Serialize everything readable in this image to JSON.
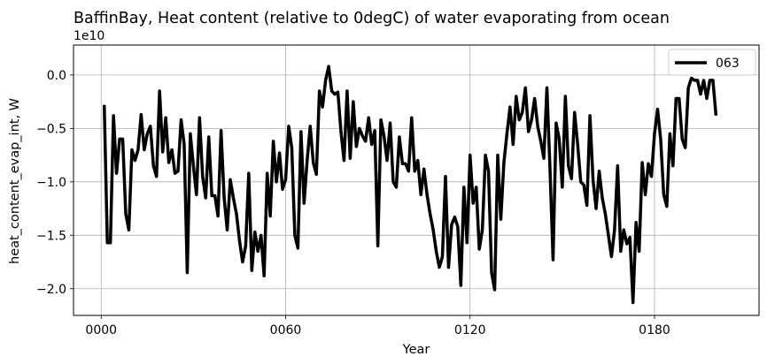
{
  "chart_data": {
    "type": "line",
    "title": "BaffinBay, Heat content (relative to 0degC) of water evaporating from ocean",
    "xlabel": "Year",
    "ylabel": "heat_content_evap_int, W",
    "offset_label": "1e10",
    "xlim": [
      -9,
      214
    ],
    "ylim": [
      -2.25,
      0.28
    ],
    "x_ticks": [
      0,
      60,
      120,
      180
    ],
    "x_tick_labels": [
      "0000",
      "0060",
      "0120",
      "0180"
    ],
    "y_ticks": [
      -2.0,
      -1.5,
      -1.0,
      -0.5,
      0.0
    ],
    "y_tick_labels": [
      "−2.0",
      "−1.5",
      "−1.0",
      "−0.5",
      "0.0"
    ],
    "grid": true,
    "legend_position": "top-right",
    "series": [
      {
        "name": "063",
        "color": "#000000",
        "x": [
          1,
          2,
          3,
          4,
          5,
          6,
          7,
          8,
          9,
          10,
          11,
          12,
          13,
          14,
          15,
          16,
          17,
          18,
          19,
          20,
          21,
          22,
          23,
          24,
          25,
          26,
          27,
          28,
          29,
          30,
          31,
          32,
          33,
          34,
          35,
          36,
          37,
          38,
          39,
          40,
          41,
          42,
          43,
          44,
          45,
          46,
          47,
          48,
          49,
          50,
          51,
          52,
          53,
          54,
          55,
          56,
          57,
          58,
          59,
          60,
          61,
          62,
          63,
          64,
          65,
          66,
          67,
          68,
          69,
          70,
          71,
          72,
          73,
          74,
          75,
          76,
          77,
          78,
          79,
          80,
          81,
          82,
          83,
          84,
          85,
          86,
          87,
          88,
          89,
          90,
          91,
          92,
          93,
          94,
          95,
          96,
          97,
          98,
          99,
          100,
          101,
          102,
          103,
          104,
          105,
          106,
          107,
          108,
          109,
          110,
          111,
          112,
          113,
          114,
          115,
          116,
          117,
          118,
          119,
          120,
          121,
          122,
          123,
          124,
          125,
          126,
          127,
          128,
          129,
          130,
          131,
          132,
          133,
          134,
          135,
          136,
          137,
          138,
          139,
          140,
          141,
          142,
          143,
          144,
          145,
          146,
          147,
          148,
          149,
          150,
          151,
          152,
          153,
          154,
          155,
          156,
          157,
          158,
          159,
          160,
          161,
          162,
          163,
          164,
          165,
          166,
          167,
          168,
          169,
          170,
          171,
          172,
          173,
          174,
          175,
          176,
          177,
          178,
          179,
          180,
          181,
          182,
          183,
          184,
          185,
          186,
          187,
          188,
          189,
          190,
          191,
          192,
          193,
          194,
          195,
          196,
          197,
          198,
          199,
          200
        ],
        "y": [
          -0.28,
          -1.57,
          -1.57,
          -0.38,
          -0.92,
          -0.6,
          -0.6,
          -1.3,
          -1.45,
          -0.7,
          -0.8,
          -0.7,
          -0.37,
          -0.7,
          -0.55,
          -0.48,
          -0.85,
          -0.95,
          -0.15,
          -0.72,
          -0.4,
          -0.82,
          -0.7,
          -0.92,
          -0.9,
          -0.42,
          -0.65,
          -1.85,
          -0.55,
          -0.85,
          -1.12,
          -0.4,
          -0.95,
          -1.15,
          -0.58,
          -1.13,
          -1.13,
          -1.32,
          -0.52,
          -1.15,
          -1.45,
          -0.98,
          -1.15,
          -1.3,
          -1.55,
          -1.75,
          -1.6,
          -0.92,
          -1.83,
          -1.47,
          -1.65,
          -1.5,
          -1.88,
          -0.92,
          -1.32,
          -0.62,
          -1.0,
          -0.73,
          -1.07,
          -0.98,
          -0.48,
          -0.68,
          -1.5,
          -1.62,
          -0.53,
          -1.2,
          -0.8,
          -0.48,
          -0.82,
          -0.93,
          -0.15,
          -0.3,
          -0.05,
          0.08,
          -0.15,
          -0.18,
          -0.16,
          -0.53,
          -0.8,
          -0.15,
          -0.78,
          -0.25,
          -0.67,
          -0.5,
          -0.57,
          -0.62,
          -0.4,
          -0.65,
          -0.52,
          -1.6,
          -0.42,
          -0.57,
          -0.8,
          -0.45,
          -1.0,
          -1.05,
          -0.58,
          -0.83,
          -0.83,
          -0.9,
          -0.4,
          -0.9,
          -0.8,
          -1.12,
          -0.88,
          -1.12,
          -1.3,
          -1.45,
          -1.65,
          -1.8,
          -1.7,
          -0.95,
          -1.8,
          -1.4,
          -1.33,
          -1.42,
          -1.97,
          -1.05,
          -1.57,
          -0.75,
          -1.2,
          -1.05,
          -1.63,
          -1.45,
          -0.75,
          -0.9,
          -1.85,
          -2.01,
          -0.75,
          -1.35,
          -0.82,
          -0.55,
          -0.3,
          -0.65,
          -0.2,
          -0.42,
          -0.35,
          -0.12,
          -0.53,
          -0.42,
          -0.22,
          -0.48,
          -0.62,
          -0.78,
          -0.12,
          -0.88,
          -1.73,
          -0.45,
          -0.6,
          -1.05,
          -0.2,
          -0.85,
          -0.97,
          -0.35,
          -0.65,
          -1.0,
          -1.03,
          -1.22,
          -0.38,
          -0.98,
          -1.25,
          -0.9,
          -1.15,
          -1.3,
          -1.5,
          -1.7,
          -1.45,
          -0.85,
          -1.65,
          -1.45,
          -1.58,
          -1.52,
          -2.13,
          -1.38,
          -1.65,
          -0.82,
          -1.12,
          -0.83,
          -0.95,
          -0.55,
          -0.32,
          -0.6,
          -1.12,
          -1.23,
          -0.55,
          -0.85,
          -0.22,
          -0.22,
          -0.6,
          -0.68,
          -0.12,
          -0.03,
          -0.05,
          -0.05,
          -0.18,
          -0.05,
          -0.22,
          -0.05,
          -0.05,
          -0.38
        ]
      }
    ]
  }
}
